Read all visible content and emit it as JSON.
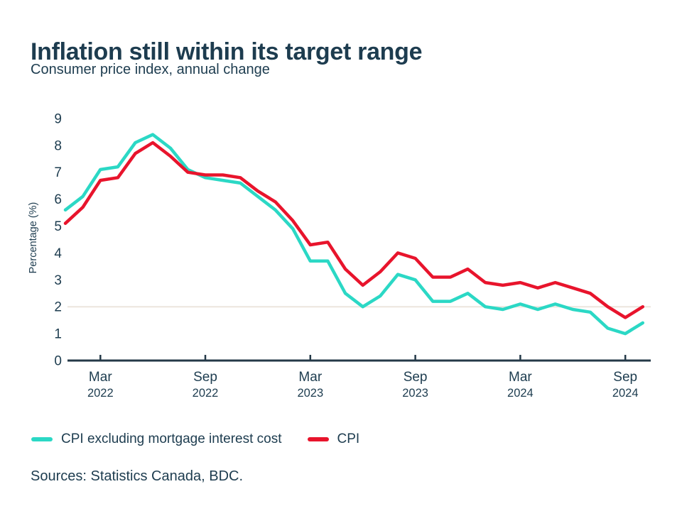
{
  "header": {
    "title": "Inflation still within its target range",
    "subtitle": "Consumer price index, annual change"
  },
  "colors": {
    "text": "#1d3c4f",
    "axis": "#243948",
    "gridline": "#ece5dd",
    "background": "#ffffff",
    "series_teal": "#2bd8c5",
    "series_red": "#e8142c"
  },
  "chart_data": {
    "type": "line",
    "title": "Inflation still within its target range",
    "subtitle": "Consumer price index, annual change",
    "ylabel": "Percentage (%)",
    "xlabel": "",
    "ylim": [
      0,
      9
    ],
    "y_ticks": [
      0,
      1,
      2,
      3,
      4,
      5,
      6,
      7,
      8,
      9
    ],
    "grid": "reference line at 2% only",
    "reference_line_value": 2,
    "legend_position": "bottom-left",
    "x_months": [
      "2022-01",
      "2022-02",
      "2022-03",
      "2022-04",
      "2022-05",
      "2022-06",
      "2022-07",
      "2022-08",
      "2022-09",
      "2022-10",
      "2022-11",
      "2022-12",
      "2023-01",
      "2023-02",
      "2023-03",
      "2023-04",
      "2023-05",
      "2023-06",
      "2023-07",
      "2023-08",
      "2023-09",
      "2023-10",
      "2023-11",
      "2023-12",
      "2024-01",
      "2024-02",
      "2024-03",
      "2024-04",
      "2024-05",
      "2024-06",
      "2024-07",
      "2024-08",
      "2024-09",
      "2024-10"
    ],
    "x_tick_labels": [
      {
        "month": "Mar",
        "year": "2022",
        "month_index": 2
      },
      {
        "month": "Sep",
        "year": "2022",
        "month_index": 8
      },
      {
        "month": "Mar",
        "year": "2023",
        "month_index": 14
      },
      {
        "month": "Sep",
        "year": "2023",
        "month_index": 20
      },
      {
        "month": "Mar",
        "year": "2024",
        "month_index": 26
      },
      {
        "month": "Sep",
        "year": "2024",
        "month_index": 32
      }
    ],
    "series": [
      {
        "name": "CPI excluding mortgage interest cost",
        "color": "#2bd8c5",
        "values": [
          5.6,
          6.1,
          7.1,
          7.2,
          8.1,
          8.4,
          7.9,
          7.1,
          6.8,
          6.7,
          6.6,
          6.1,
          5.6,
          4.9,
          3.7,
          3.7,
          2.5,
          2.0,
          2.4,
          3.2,
          3.0,
          2.2,
          2.2,
          2.5,
          2.0,
          1.9,
          2.1,
          1.9,
          2.1,
          1.9,
          1.8,
          1.2,
          1.0,
          1.4
        ]
      },
      {
        "name": "CPI",
        "color": "#e8142c",
        "values": [
          5.1,
          5.7,
          6.7,
          6.8,
          7.7,
          8.1,
          7.6,
          7.0,
          6.9,
          6.9,
          6.8,
          6.3,
          5.9,
          5.2,
          4.3,
          4.4,
          3.4,
          2.8,
          3.3,
          4.0,
          3.8,
          3.1,
          3.1,
          3.4,
          2.9,
          2.8,
          2.9,
          2.7,
          2.9,
          2.7,
          2.5,
          2.0,
          1.6,
          2.0
        ]
      }
    ]
  },
  "footer": {
    "sources": "Sources: Statistics Canada, BDC."
  }
}
